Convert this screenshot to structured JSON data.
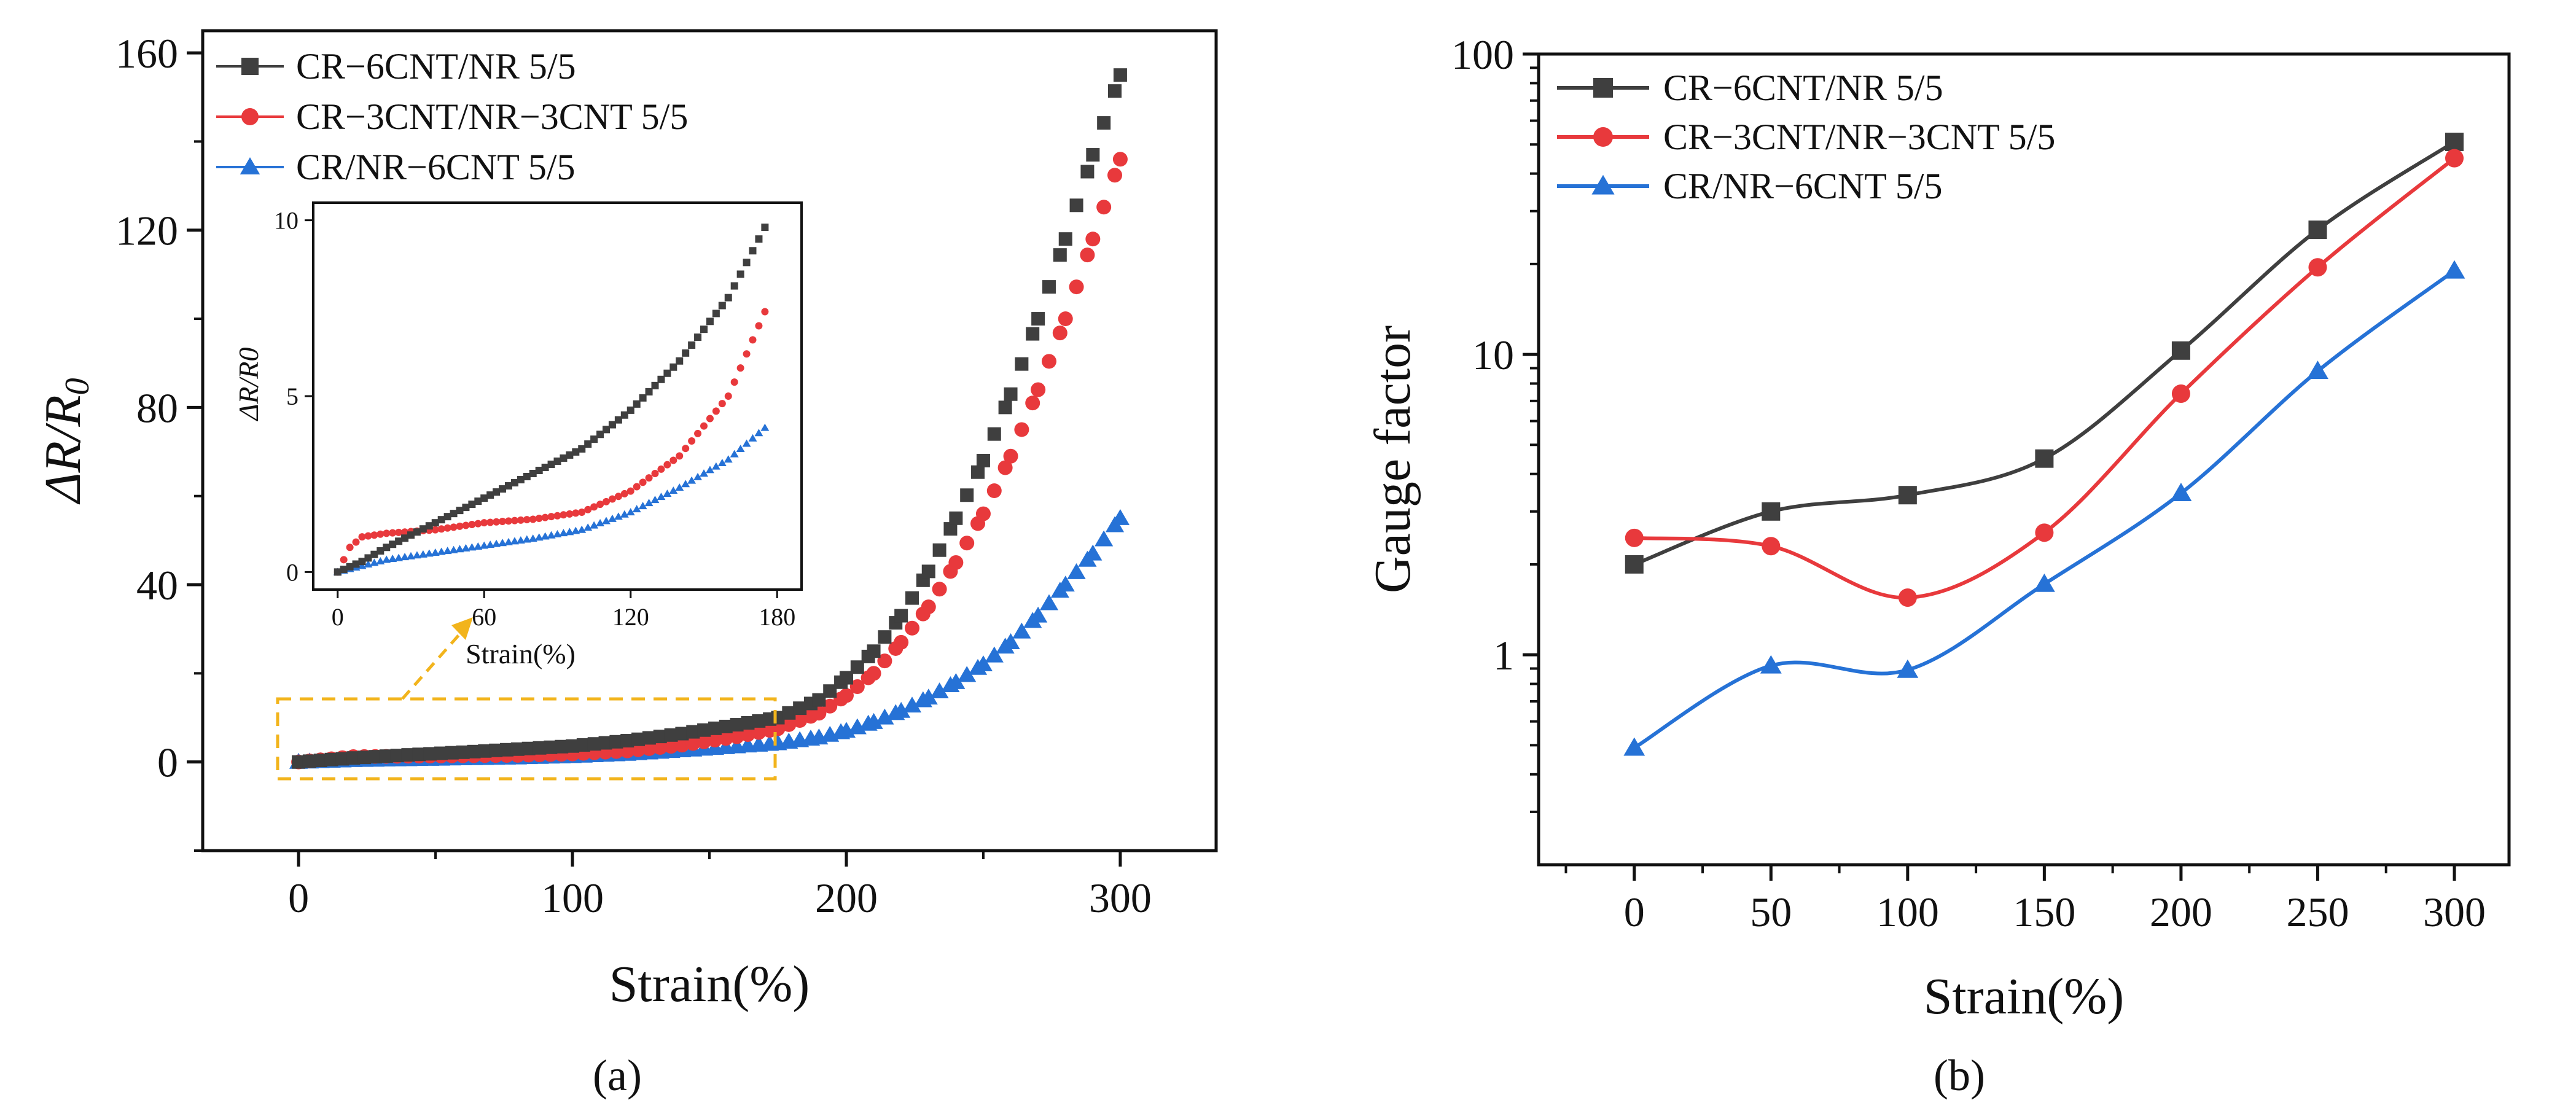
{
  "chart_data": [
    {
      "type": "scatter",
      "panel_label": "(a)",
      "xlabel": "Strain(%)",
      "ylabel": "ΔR/R0",
      "xlim": [
        -35,
        335
      ],
      "ylim": [
        -20,
        165
      ],
      "xticks": [
        0,
        100,
        200,
        300
      ],
      "yticks": [
        0,
        40,
        80,
        120,
        160
      ],
      "legend_position": "top-left",
      "series": [
        {
          "name": "CR−6CNT/NR 5/5",
          "color": "#3f3f3f",
          "marker": "square",
          "x": [
            0,
            20,
            40,
            60,
            80,
            100,
            120,
            140,
            160,
            175,
            190,
            200,
            210,
            220,
            230,
            240,
            250,
            260,
            270,
            280,
            290,
            300
          ],
          "y": [
            0,
            0.9,
            1.6,
            2.2,
            2.9,
            3.6,
            4.8,
            6.4,
            8.4,
            10,
            14,
            19,
            25,
            33,
            43,
            55,
            68,
            83,
            100,
            118,
            137,
            155
          ]
        },
        {
          "name": "CR−3CNT/NR−3CNT 5/5",
          "color": "#e8393c",
          "marker": "circle",
          "x": [
            0,
            20,
            40,
            60,
            80,
            100,
            120,
            140,
            160,
            175,
            190,
            200,
            210,
            220,
            230,
            240,
            250,
            260,
            270,
            280,
            290,
            300
          ],
          "y": [
            0,
            1.2,
            1.3,
            1.4,
            1.5,
            1.8,
            2.5,
            3.8,
            5.7,
            7.5,
            11,
            15,
            20,
            27,
            35,
            45,
            56,
            69,
            84,
            100,
            118,
            136
          ]
        },
        {
          "name": "CR/NR−6CNT 5/5",
          "color": "#2672d6",
          "marker": "triangle",
          "x": [
            0,
            20,
            40,
            60,
            80,
            100,
            120,
            140,
            160,
            175,
            190,
            200,
            210,
            220,
            230,
            240,
            250,
            260,
            270,
            280,
            290,
            300
          ],
          "y": [
            0,
            0.4,
            0.6,
            0.8,
            1.0,
            1.3,
            1.8,
            2.6,
            3.5,
            4.2,
            5.5,
            7,
            9,
            11.5,
            14.5,
            18,
            22,
            27,
            33,
            40,
            47,
            55
          ]
        }
      ],
      "inset": {
        "xlabel": "Strain(%)",
        "ylabel": "ΔR/R0",
        "xlim": [
          -10,
          190
        ],
        "ylim": [
          -0.5,
          10.5
        ],
        "xticks": [
          0,
          60,
          120,
          180
        ],
        "yticks": [
          0,
          5,
          10
        ],
        "series": [
          {
            "name": "CR−6CNT/NR 5/5",
            "x": [
              0,
              10,
              20,
              40,
              60,
              80,
              100,
              120,
              140,
              160,
              175
            ],
            "y": [
              0,
              0.3,
              0.7,
              1.4,
              2.1,
              2.8,
              3.5,
              4.6,
              6.0,
              7.8,
              9.8
            ]
          },
          {
            "name": "CR−3CNT/NR−3CNT 5/5",
            "x": [
              0,
              5,
              10,
              20,
              40,
              60,
              80,
              100,
              120,
              140,
              160,
              175
            ],
            "y": [
              0,
              0.7,
              1.0,
              1.1,
              1.2,
              1.4,
              1.5,
              1.7,
              2.3,
              3.3,
              5.0,
              7.4
            ]
          },
          {
            "name": "CR/NR−6CNT 5/5",
            "x": [
              0,
              20,
              40,
              60,
              80,
              100,
              120,
              140,
              160,
              175
            ],
            "y": [
              0,
              0.35,
              0.55,
              0.75,
              0.95,
              1.2,
              1.7,
              2.4,
              3.2,
              4.1
            ]
          }
        ]
      }
    },
    {
      "type": "line",
      "panel_label": "(b)",
      "xlabel": "Strain(%)",
      "ylabel": "Gauge factor",
      "yscale": "log",
      "xlim": [
        -35,
        320
      ],
      "ylim": [
        0.2,
        100
      ],
      "xticks": [
        0,
        50,
        100,
        150,
        200,
        250,
        300
      ],
      "yticks": [
        1,
        10,
        100
      ],
      "ytick_labels": [
        "1",
        "10",
        "100"
      ],
      "legend_position": "top-left",
      "series": [
        {
          "name": "CR−6CNT/NR 5/5",
          "color": "#3f3f3f",
          "marker": "square",
          "x": [
            0,
            50,
            100,
            150,
            200,
            250,
            300
          ],
          "y": [
            2.0,
            3.0,
            3.4,
            4.5,
            10.3,
            26,
            51
          ]
        },
        {
          "name": "CR−3CNT/NR−3CNT 5/5",
          "color": "#e8393c",
          "marker": "circle",
          "x": [
            0,
            50,
            100,
            150,
            200,
            250,
            300
          ],
          "y": [
            2.45,
            2.3,
            1.55,
            2.55,
            7.4,
            19.5,
            45
          ]
        },
        {
          "name": "CR/NR−6CNT 5/5",
          "color": "#2672d6",
          "marker": "triangle",
          "x": [
            0,
            50,
            100,
            150,
            200,
            250,
            300
          ],
          "y": [
            0.49,
            0.92,
            0.89,
            1.72,
            3.45,
            8.8,
            19
          ]
        }
      ]
    }
  ]
}
